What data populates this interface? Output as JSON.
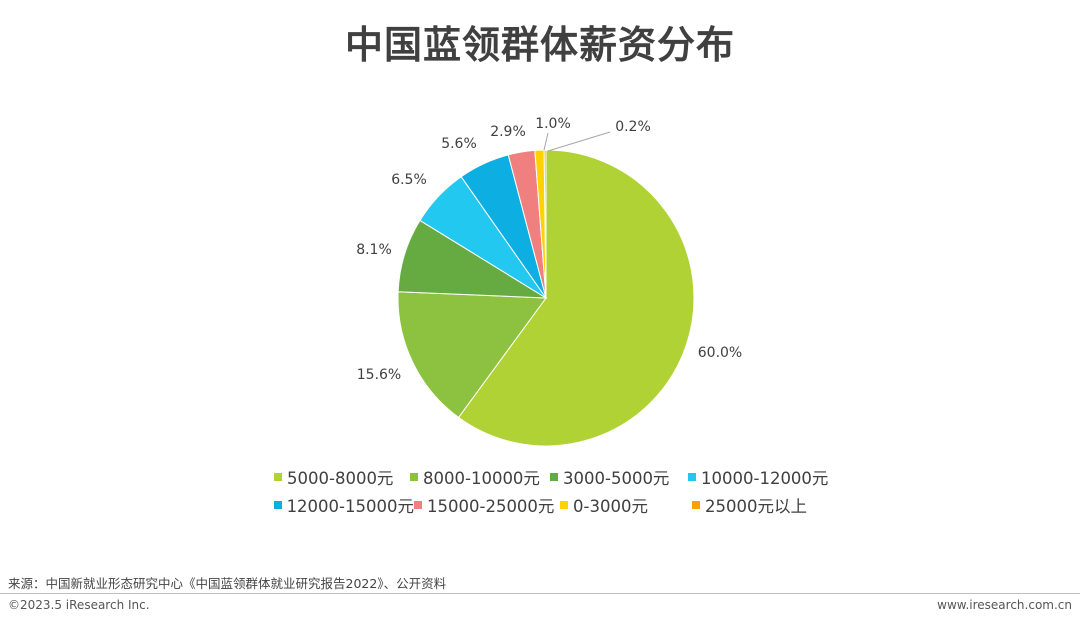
{
  "title": "中国蓝领群体薪资分布",
  "chart_data": {
    "type": "pie",
    "categories": [
      "5000-8000元",
      "8000-10000元",
      "3000-5000元",
      "10000-12000元",
      "12000-15000元",
      "15000-25000元",
      "0-3000元",
      "25000元以上"
    ],
    "values": [
      60.0,
      15.6,
      8.1,
      6.5,
      5.6,
      2.9,
      1.0,
      0.2
    ],
    "labels": [
      "60.0%",
      "15.6%",
      "8.1%",
      "6.5%",
      "5.6%",
      "2.9%",
      "1.0%",
      "0.2%"
    ],
    "colors": [
      "#b0d235",
      "#8cc23f",
      "#65ab42",
      "#22c8ef",
      "#0daee2",
      "#f08080",
      "#ffd200",
      "#f5a300"
    ],
    "legend_position": "bottom"
  },
  "legend": {
    "items": [
      "5000-8000元",
      "8000-10000元",
      "3000-5000元",
      "10000-12000元",
      "12000-15000元",
      "15000-25000元",
      "0-3000元",
      "25000元以上"
    ]
  },
  "footer": {
    "source": "来源：中国新就业形态研究中心《中国蓝领群体就业研究报告2022》、公开资料",
    "copyright": "©2023.5 iResearch Inc.",
    "website": "www.iresearch.com.cn"
  }
}
